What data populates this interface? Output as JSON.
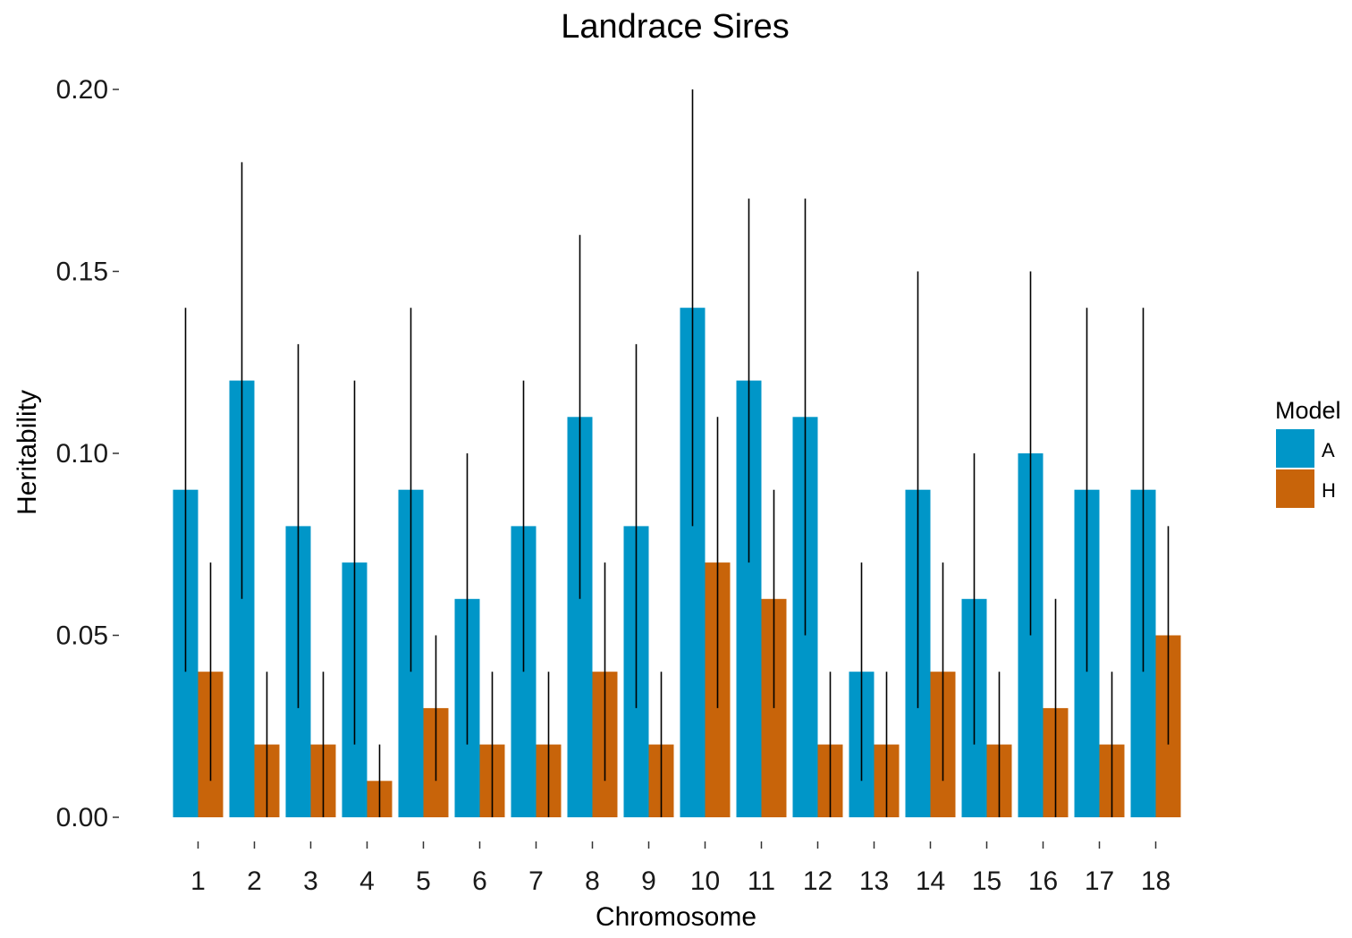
{
  "chart_data": {
    "type": "bar",
    "title": "Landrace Sires",
    "xlabel": "Chromosome",
    "ylabel": "Heritability",
    "categories": [
      "1",
      "2",
      "3",
      "4",
      "5",
      "6",
      "7",
      "8",
      "9",
      "10",
      "11",
      "12",
      "13",
      "14",
      "15",
      "16",
      "17",
      "18"
    ],
    "ylim": [
      0,
      0.2
    ],
    "yticks": [
      0.0,
      0.05,
      0.1,
      0.15,
      0.2
    ],
    "ytick_labels": [
      "0.00",
      "0.05",
      "0.10",
      "0.15",
      "0.20"
    ],
    "legend_title": "Model",
    "legend_position": "right",
    "grid": false,
    "series": [
      {
        "name": "A",
        "color": "#0096c8",
        "values": [
          0.09,
          0.12,
          0.08,
          0.07,
          0.09,
          0.06,
          0.08,
          0.11,
          0.08,
          0.14,
          0.12,
          0.11,
          0.04,
          0.09,
          0.06,
          0.1,
          0.09,
          0.09
        ],
        "error_low": [
          0.04,
          0.06,
          0.03,
          0.02,
          0.04,
          0.02,
          0.04,
          0.06,
          0.03,
          0.08,
          0.07,
          0.05,
          0.01,
          0.03,
          0.02,
          0.05,
          0.04,
          0.04
        ],
        "error_high": [
          0.14,
          0.18,
          0.13,
          0.12,
          0.14,
          0.1,
          0.12,
          0.16,
          0.13,
          0.2,
          0.17,
          0.17,
          0.07,
          0.15,
          0.1,
          0.15,
          0.14,
          0.14
        ]
      },
      {
        "name": "H",
        "color": "#c8640a",
        "values": [
          0.04,
          0.02,
          0.02,
          0.01,
          0.03,
          0.02,
          0.02,
          0.04,
          0.02,
          0.07,
          0.06,
          0.02,
          0.02,
          0.04,
          0.02,
          0.03,
          0.02,
          0.05
        ],
        "error_low": [
          0.01,
          0.0,
          0.0,
          0.0,
          0.01,
          0.0,
          0.0,
          0.01,
          0.0,
          0.03,
          0.03,
          0.0,
          0.0,
          0.01,
          0.0,
          0.0,
          0.0,
          0.02
        ],
        "error_high": [
          0.07,
          0.04,
          0.04,
          0.02,
          0.05,
          0.04,
          0.04,
          0.07,
          0.04,
          0.11,
          0.09,
          0.04,
          0.04,
          0.07,
          0.04,
          0.06,
          0.04,
          0.08
        ]
      }
    ]
  }
}
